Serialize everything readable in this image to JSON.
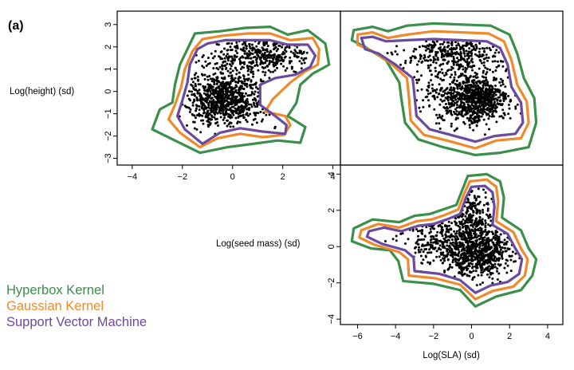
{
  "figure": {
    "panel_label": "(a)",
    "colors": {
      "hyperbox": "#3a8f4a",
      "gaussian": "#ef8a2c",
      "svm": "#6a4a9e",
      "points": "#000000"
    },
    "legend": [
      {
        "label": "Hyperbox Kernel",
        "color": "#3a8f4a"
      },
      {
        "label": "Gaussian Kernel",
        "color": "#ef8a2c"
      },
      {
        "label": "Support Vector Machine",
        "color": "#6a4a9e"
      }
    ]
  },
  "chart_data": [
    {
      "type": "scatter",
      "title": "",
      "xlabel": "",
      "ylabel": "Log(height) (sd)",
      "x_variable": "Log(seed mass) (sd)",
      "y_variable": "Log(height) (sd)",
      "xlim": [
        -4.6,
        4.3
      ],
      "ylim": [
        -3.3,
        3.6
      ],
      "xticks": [
        -4,
        -2,
        0,
        2,
        4
      ],
      "yticks": [
        -3,
        -2,
        -1,
        0,
        1,
        2,
        3
      ],
      "x_tick_labels": [
        "−4",
        "−2",
        "0",
        "2",
        "4"
      ],
      "y_tick_labels": [
        "−3",
        "−2",
        "−1",
        "0",
        "1",
        "2",
        "3"
      ],
      "legend_position": "bottom-left, outside",
      "grid": false,
      "point_clusters": [
        {
          "cx": -0.4,
          "cy": -0.4,
          "sx": 0.75,
          "sy": 0.55,
          "n": 650
        },
        {
          "cx": 1.3,
          "cy": 1.7,
          "sx": 0.9,
          "sy": 0.35,
          "n": 260
        },
        {
          "cx": 0.4,
          "cy": 0.5,
          "sx": 1.3,
          "sy": 1.0,
          "n": 300
        }
      ],
      "boundaries": [
        {
          "name": "Hyperbox Kernel",
          "color": "#3a8f4a",
          "points": [
            [
              -1.5,
              2.6
            ],
            [
              -0.5,
              2.7
            ],
            [
              0.5,
              2.85
            ],
            [
              1.5,
              2.9
            ],
            [
              2.2,
              2.55
            ],
            [
              3,
              2.75
            ],
            [
              3.7,
              2.15
            ],
            [
              3.85,
              1.2
            ],
            [
              3.2,
              0.8
            ],
            [
              2.7,
              0.3
            ],
            [
              2.55,
              -0.5
            ],
            [
              2.2,
              -1.1
            ],
            [
              2.9,
              -1.6
            ],
            [
              2.7,
              -2.3
            ],
            [
              1.8,
              -2.2
            ],
            [
              0.8,
              -2.35
            ],
            [
              -0.2,
              -2.5
            ],
            [
              -1.3,
              -2.75
            ],
            [
              -2.3,
              -2.2
            ],
            [
              -3.2,
              -1.7
            ],
            [
              -2.9,
              -0.8
            ],
            [
              -2.4,
              -0.5
            ],
            [
              -2.3,
              0.3
            ],
            [
              -2.1,
              1.2
            ],
            [
              -1.8,
              1.9
            ]
          ]
        },
        {
          "name": "Gaussian Kernel",
          "color": "#ef8a2c",
          "points": [
            [
              -1.2,
              2.35
            ],
            [
              -0.4,
              2.5
            ],
            [
              0.6,
              2.6
            ],
            [
              1.5,
              2.6
            ],
            [
              2.3,
              2.3
            ],
            [
              3.2,
              2.4
            ],
            [
              3.45,
              1.9
            ],
            [
              3.4,
              1.2
            ],
            [
              2.9,
              0.9
            ],
            [
              2.3,
              0.4
            ],
            [
              1.6,
              -0.35
            ],
            [
              1.3,
              -0.9
            ],
            [
              2.1,
              -1.1
            ],
            [
              2.3,
              -1.5
            ],
            [
              2.05,
              -1.95
            ],
            [
              1.2,
              -2.05
            ],
            [
              0.3,
              -1.9
            ],
            [
              -0.6,
              -2.1
            ],
            [
              -1.3,
              -2.5
            ],
            [
              -2.1,
              -1.85
            ],
            [
              -2.55,
              -1.25
            ],
            [
              -2.3,
              -0.6
            ],
            [
              -2.05,
              0.2
            ],
            [
              -1.9,
              1.0
            ],
            [
              -1.6,
              1.8
            ]
          ]
        },
        {
          "name": "Support Vector Machine",
          "color": "#6a4a9e",
          "points": [
            [
              -1.0,
              2.15
            ],
            [
              -0.3,
              2.3
            ],
            [
              0.6,
              2.3
            ],
            [
              1.5,
              2.3
            ],
            [
              2.2,
              2.1
            ],
            [
              3.0,
              2.1
            ],
            [
              3.3,
              1.6
            ],
            [
              3.1,
              1.1
            ],
            [
              2.5,
              0.75
            ],
            [
              1.7,
              0.6
            ],
            [
              1.1,
              0.3
            ],
            [
              1.1,
              -0.6
            ],
            [
              1.7,
              -1.1
            ],
            [
              2.15,
              -1.5
            ],
            [
              2.1,
              -1.9
            ],
            [
              1.2,
              -1.8
            ],
            [
              0.3,
              -1.65
            ],
            [
              -0.5,
              -1.85
            ],
            [
              -1.2,
              -2.35
            ],
            [
              -1.9,
              -1.7
            ],
            [
              -2.2,
              -1.1
            ],
            [
              -2.0,
              -0.4
            ],
            [
              -1.8,
              0.4
            ],
            [
              -1.7,
              1.2
            ],
            [
              -1.4,
              1.9
            ]
          ]
        }
      ]
    },
    {
      "type": "scatter",
      "title": "",
      "xlabel": "",
      "ylabel": "",
      "x_variable": "Log(SLA) (sd)",
      "y_variable": "Log(height) (sd)",
      "xlim": [
        -6.9,
        4.8
      ],
      "ylim": [
        -3.3,
        3.6
      ],
      "xticks": [],
      "yticks": [],
      "x_tick_labels": [],
      "y_tick_labels": [],
      "grid": false,
      "point_clusters": [
        {
          "cx": 0.2,
          "cy": -0.4,
          "sx": 0.9,
          "sy": 0.5,
          "n": 650
        },
        {
          "cx": -1.0,
          "cy": 1.7,
          "sx": 1.3,
          "sy": 0.35,
          "n": 260
        },
        {
          "cx": -0.6,
          "cy": 0.5,
          "sx": 1.5,
          "sy": 1.0,
          "n": 300
        }
      ],
      "boundaries": [
        {
          "name": "Hyperbox Kernel",
          "color": "#3a8f4a",
          "points": [
            [
              -6.2,
              2.75
            ],
            [
              -5.2,
              2.9
            ],
            [
              -4.4,
              2.7
            ],
            [
              -3.4,
              2.95
            ],
            [
              -2.0,
              3.05
            ],
            [
              -0.5,
              3.0
            ],
            [
              1.0,
              2.95
            ],
            [
              2.0,
              2.55
            ],
            [
              2.4,
              1.7
            ],
            [
              2.75,
              0.6
            ],
            [
              3.3,
              -0.3
            ],
            [
              3.4,
              -1.4
            ],
            [
              3.0,
              -2.5
            ],
            [
              1.5,
              -2.75
            ],
            [
              0.2,
              -2.85
            ],
            [
              -1.5,
              -2.5
            ],
            [
              -2.8,
              -2.15
            ],
            [
              -3.5,
              -1.4
            ],
            [
              -3.7,
              -0.3
            ],
            [
              -3.8,
              0.4
            ],
            [
              -4.5,
              1.4
            ],
            [
              -5.6,
              2.0
            ],
            [
              -6.3,
              2.3
            ]
          ]
        },
        {
          "name": "Gaussian Kernel",
          "color": "#ef8a2c",
          "points": [
            [
              -6.0,
              2.55
            ],
            [
              -5.2,
              2.65
            ],
            [
              -4.4,
              2.4
            ],
            [
              -3.4,
              2.55
            ],
            [
              -2.0,
              2.7
            ],
            [
              -0.5,
              2.65
            ],
            [
              0.9,
              2.6
            ],
            [
              1.7,
              2.25
            ],
            [
              2.1,
              1.4
            ],
            [
              2.4,
              0.3
            ],
            [
              2.9,
              -0.45
            ],
            [
              3.0,
              -1.4
            ],
            [
              2.6,
              -2.1
            ],
            [
              1.3,
              -2.2
            ],
            [
              0.2,
              -2.55
            ],
            [
              -1.3,
              -2.2
            ],
            [
              -2.5,
              -1.95
            ],
            [
              -3.2,
              -1.3
            ],
            [
              -3.3,
              -0.2
            ],
            [
              -3.4,
              0.6
            ],
            [
              -4.3,
              1.3
            ],
            [
              -5.2,
              1.8
            ],
            [
              -6.0,
              2.1
            ]
          ]
        },
        {
          "name": "Support Vector Machine",
          "color": "#6a4a9e",
          "points": [
            [
              -5.8,
              2.4
            ],
            [
              -5.2,
              2.45
            ],
            [
              -4.5,
              2.25
            ],
            [
              -3.4,
              2.3
            ],
            [
              -2.0,
              2.35
            ],
            [
              -0.6,
              2.3
            ],
            [
              0.8,
              2.25
            ],
            [
              1.5,
              1.95
            ],
            [
              1.9,
              1.2
            ],
            [
              2.1,
              0.2
            ],
            [
              2.6,
              -0.5
            ],
            [
              2.7,
              -1.4
            ],
            [
              2.3,
              -1.9
            ],
            [
              1.2,
              -2.0
            ],
            [
              0.2,
              -2.25
            ],
            [
              -1.1,
              -1.95
            ],
            [
              -2.2,
              -1.7
            ],
            [
              -2.9,
              -1.1
            ],
            [
              -3.0,
              -0.2
            ],
            [
              -3.1,
              0.6
            ],
            [
              -4.0,
              1.2
            ],
            [
              -4.9,
              1.7
            ],
            [
              -5.6,
              1.9
            ]
          ]
        }
      ]
    },
    {
      "type": "scatter",
      "title": "",
      "xlabel": "Log(SLA) (sd)",
      "ylabel": "Log(seed mass) (sd)",
      "x_variable": "Log(SLA) (sd)",
      "y_variable": "Log(seed mass) (sd)",
      "xlim": [
        -6.9,
        4.8
      ],
      "ylim": [
        -4.3,
        4.5
      ],
      "xticks": [
        -6,
        -4,
        -2,
        0,
        2,
        4
      ],
      "yticks": [
        -4,
        -2,
        0,
        2,
        4
      ],
      "x_tick_labels": [
        "−6",
        "−4",
        "−2",
        "0",
        "2",
        "4"
      ],
      "y_tick_labels": [
        "−4",
        "−2",
        "0",
        "2",
        "4"
      ],
      "grid": false,
      "point_clusters": [
        {
          "cx": 0.3,
          "cy": -0.3,
          "sx": 0.85,
          "sy": 0.7,
          "n": 650
        },
        {
          "cx": 0.0,
          "cy": 1.7,
          "sx": 0.6,
          "sy": 0.8,
          "n": 220
        },
        {
          "cx": -1.5,
          "cy": 0.4,
          "sx": 1.3,
          "sy": 0.7,
          "n": 280
        }
      ],
      "boundaries": [
        {
          "name": "Hyperbox Kernel",
          "color": "#3a8f4a",
          "points": [
            [
              -1.5,
              2.05
            ],
            [
              -0.8,
              2.3
            ],
            [
              -0.5,
              3.1
            ],
            [
              -0.2,
              3.9
            ],
            [
              0.8,
              4.0
            ],
            [
              1.5,
              3.6
            ],
            [
              1.7,
              2.7
            ],
            [
              1.6,
              1.6
            ],
            [
              2.6,
              0.9
            ],
            [
              3.0,
              -0.1
            ],
            [
              3.4,
              -0.7
            ],
            [
              3.2,
              -1.6
            ],
            [
              2.6,
              -2.4
            ],
            [
              1.3,
              -2.75
            ],
            [
              0.2,
              -3.3
            ],
            [
              -0.6,
              -2.4
            ],
            [
              -2.0,
              -2.05
            ],
            [
              -3.6,
              -1.9
            ],
            [
              -3.85,
              -0.8
            ],
            [
              -4.3,
              -0.2
            ],
            [
              -5.3,
              -0.1
            ],
            [
              -6.3,
              0.3
            ],
            [
              -6.2,
              1.0
            ],
            [
              -5.2,
              1.5
            ],
            [
              -3.8,
              1.35
            ],
            [
              -3.0,
              1.7
            ],
            [
              -2.2,
              1.8
            ]
          ]
        },
        {
          "name": "Gaussian Kernel",
          "color": "#ef8a2c",
          "points": [
            [
              -1.4,
              1.75
            ],
            [
              -0.7,
              2.05
            ],
            [
              -0.4,
              2.9
            ],
            [
              -0.1,
              3.6
            ],
            [
              0.8,
              3.7
            ],
            [
              1.3,
              3.3
            ],
            [
              1.4,
              2.5
            ],
            [
              1.3,
              1.4
            ],
            [
              2.2,
              0.8
            ],
            [
              2.6,
              -0.1
            ],
            [
              2.95,
              -0.7
            ],
            [
              2.8,
              -1.6
            ],
            [
              2.2,
              -2.2
            ],
            [
              1.1,
              -2.45
            ],
            [
              0.2,
              -2.9
            ],
            [
              -0.6,
              -2.1
            ],
            [
              -1.9,
              -1.75
            ],
            [
              -3.3,
              -1.6
            ],
            [
              -3.35,
              -0.7
            ],
            [
              -3.8,
              -0.3
            ],
            [
              -5.1,
              0.1
            ],
            [
              -5.9,
              0.5
            ],
            [
              -5.8,
              0.9
            ],
            [
              -4.9,
              1.25
            ],
            [
              -3.8,
              1.05
            ],
            [
              -2.9,
              1.4
            ],
            [
              -2.1,
              1.5
            ]
          ]
        },
        {
          "name": "Support Vector Machine",
          "color": "#6a4a9e",
          "points": [
            [
              -1.3,
              1.5
            ],
            [
              -0.6,
              1.8
            ],
            [
              -0.3,
              2.7
            ],
            [
              0.0,
              3.3
            ],
            [
              0.7,
              3.35
            ],
            [
              1.1,
              3.0
            ],
            [
              1.2,
              2.2
            ],
            [
              1.1,
              1.2
            ],
            [
              1.9,
              0.7
            ],
            [
              2.3,
              -0.1
            ],
            [
              2.65,
              -0.7
            ],
            [
              2.5,
              -1.5
            ],
            [
              1.9,
              -1.95
            ],
            [
              1.0,
              -2.15
            ],
            [
              0.2,
              -2.55
            ],
            [
              -0.6,
              -1.85
            ],
            [
              -1.7,
              -1.5
            ],
            [
              -3.0,
              -1.35
            ],
            [
              -3.05,
              -0.6
            ],
            [
              -3.5,
              -0.2
            ],
            [
              -4.7,
              0.15
            ],
            [
              -5.5,
              0.55
            ],
            [
              -5.4,
              0.85
            ],
            [
              -4.6,
              1.05
            ],
            [
              -3.7,
              0.85
            ],
            [
              -2.8,
              1.15
            ],
            [
              -2.0,
              1.25
            ]
          ]
        }
      ]
    }
  ]
}
